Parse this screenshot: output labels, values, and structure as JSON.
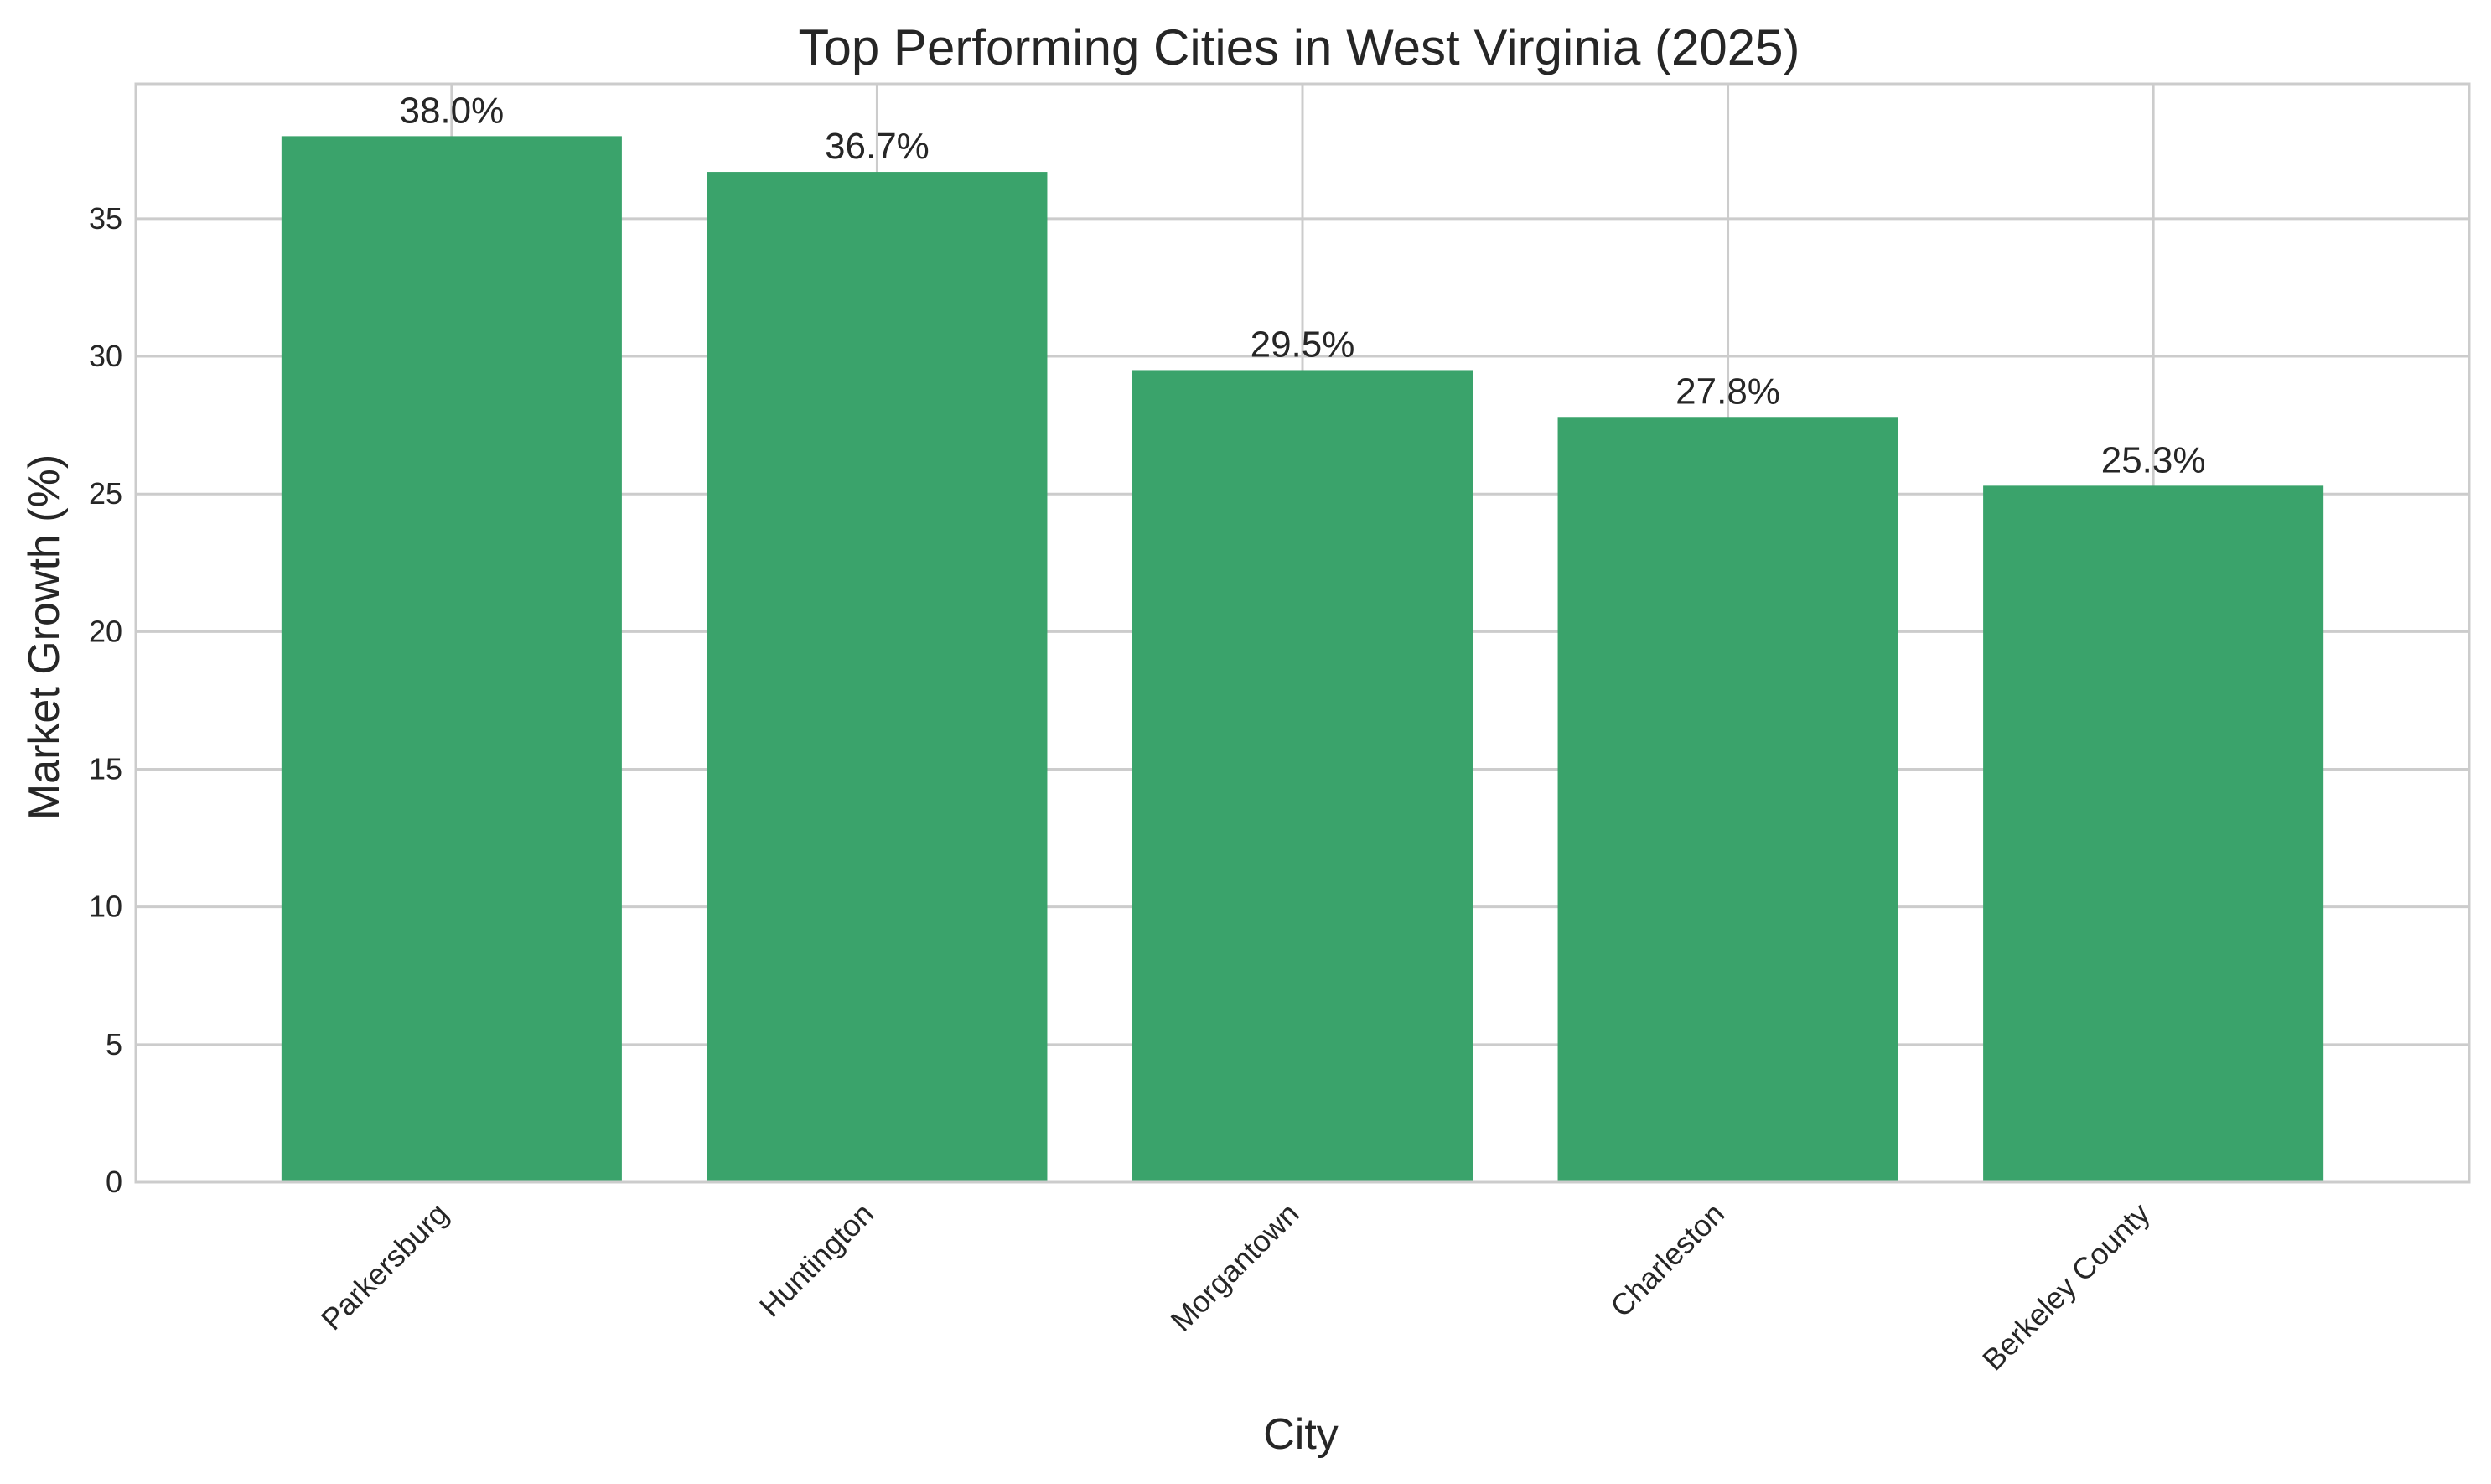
{
  "chart_data": {
    "type": "bar",
    "title": "Top Performing Cities in West Virginia (2025)",
    "xlabel": "City",
    "ylabel": "Market Growth (%)",
    "categories": [
      "Parkersburg",
      "Huntington",
      "Morgantown",
      "Charleston",
      "Berkeley County"
    ],
    "values": [
      38.0,
      36.7,
      29.5,
      27.8,
      25.3
    ],
    "data_labels": [
      "38.0%",
      "36.7%",
      "29.5%",
      "27.8%",
      "25.3%"
    ],
    "yticks": [
      0,
      5,
      10,
      15,
      20,
      25,
      30,
      35
    ],
    "ylim": [
      0,
      39.9
    ],
    "grid": true,
    "legend": "none",
    "bar_color": "#3aa36b",
    "grid_color": "#cccccc",
    "text_color": "#262626"
  }
}
